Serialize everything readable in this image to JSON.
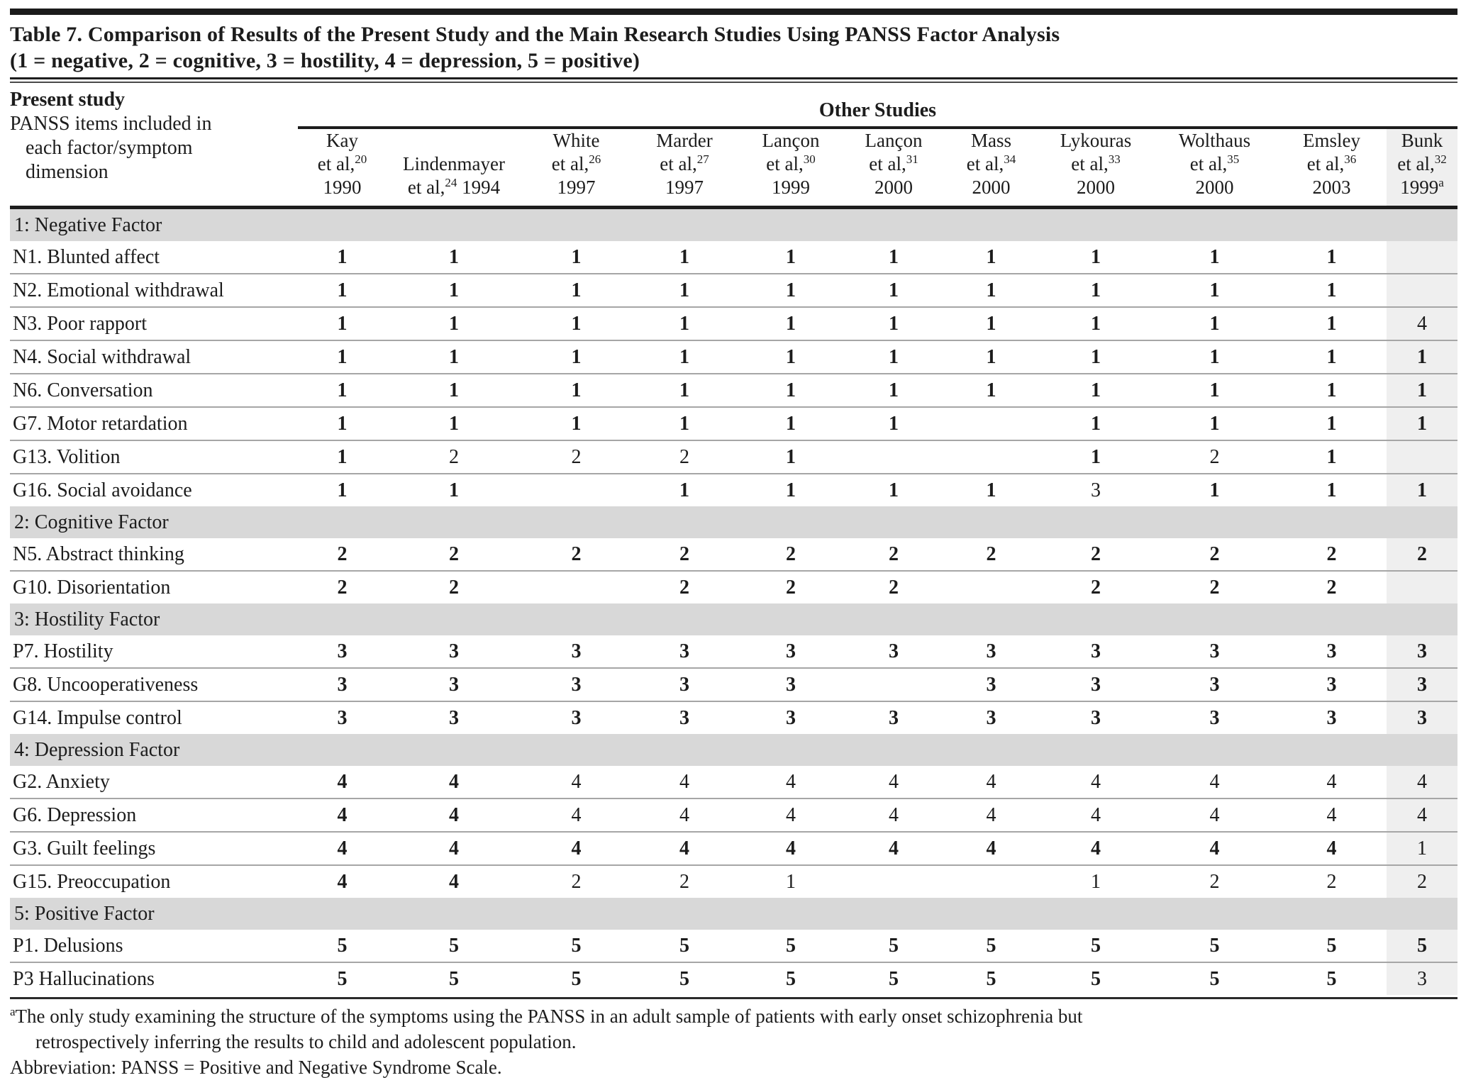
{
  "title": {
    "line1": "Table 7. Comparison of Results of the Present Study and the Main Research Studies Using PANSS Factor Analysis",
    "line2": "(1 = negative, 2 = cognitive, 3 = hostility, 4 = depression, 5 = positive)"
  },
  "header": {
    "present_study": "Present study",
    "stub_lines": [
      "PANSS items included in",
      "each factor/symptom",
      "dimension"
    ],
    "other_studies": "Other Studies",
    "etal_label": "et al,",
    "columns": [
      {
        "key": "kay-1990",
        "name": "Kay",
        "ref": "20",
        "year": "1990"
      },
      {
        "key": "lindenmayer-1994",
        "name": "Lindenmayer",
        "ref": "24",
        "year": "1994",
        "inline_year": true
      },
      {
        "key": "white-1997",
        "name": "White",
        "ref": "26",
        "year": "1997"
      },
      {
        "key": "marder-1997",
        "name": "Marder",
        "ref": "27",
        "year": "1997"
      },
      {
        "key": "lancon-1999",
        "name": "Lançon",
        "ref": "30",
        "year": "1999"
      },
      {
        "key": "lancon-2000",
        "name": "Lançon",
        "ref": "31",
        "year": "2000"
      },
      {
        "key": "mass-2000",
        "name": "Mass",
        "ref": "34",
        "year": "2000"
      },
      {
        "key": "lykouras-2000",
        "name": "Lykouras",
        "ref": "33",
        "year": "2000"
      },
      {
        "key": "wolthaus-2000",
        "name": "Wolthaus",
        "ref": "35",
        "year": "2000"
      },
      {
        "key": "emsley-2003",
        "name": "Emsley",
        "ref": "36",
        "year": "2003"
      },
      {
        "key": "bunk-1999",
        "name": "Bunk",
        "ref": "32",
        "year": "1999",
        "year_sup": "a",
        "shaded": true
      }
    ]
  },
  "sections": [
    {
      "label": "1: Negative Factor",
      "rows": [
        {
          "label": "N1. Blunted affect",
          "cells": [
            {
              "v": "1",
              "b": true
            },
            {
              "v": "1",
              "b": true
            },
            {
              "v": "1",
              "b": true
            },
            {
              "v": "1",
              "b": true
            },
            {
              "v": "1",
              "b": true
            },
            {
              "v": "1",
              "b": true
            },
            {
              "v": "1",
              "b": true
            },
            {
              "v": "1",
              "b": true
            },
            {
              "v": "1",
              "b": true
            },
            {
              "v": "1",
              "b": true
            },
            null
          ]
        },
        {
          "label": "N2. Emotional withdrawal",
          "cells": [
            {
              "v": "1",
              "b": true
            },
            {
              "v": "1",
              "b": true
            },
            {
              "v": "1",
              "b": true
            },
            {
              "v": "1",
              "b": true
            },
            {
              "v": "1",
              "b": true
            },
            {
              "v": "1",
              "b": true
            },
            {
              "v": "1",
              "b": true
            },
            {
              "v": "1",
              "b": true
            },
            {
              "v": "1",
              "b": true
            },
            {
              "v": "1",
              "b": true
            },
            null
          ]
        },
        {
          "label": "N3. Poor rapport",
          "cells": [
            {
              "v": "1",
              "b": true
            },
            {
              "v": "1",
              "b": true
            },
            {
              "v": "1",
              "b": true
            },
            {
              "v": "1",
              "b": true
            },
            {
              "v": "1",
              "b": true
            },
            {
              "v": "1",
              "b": true
            },
            {
              "v": "1",
              "b": true
            },
            {
              "v": "1",
              "b": true
            },
            {
              "v": "1",
              "b": true
            },
            {
              "v": "1",
              "b": true
            },
            {
              "v": "4",
              "b": false
            }
          ]
        },
        {
          "label": "N4. Social withdrawal",
          "cells": [
            {
              "v": "1",
              "b": true
            },
            {
              "v": "1",
              "b": true
            },
            {
              "v": "1",
              "b": true
            },
            {
              "v": "1",
              "b": true
            },
            {
              "v": "1",
              "b": true
            },
            {
              "v": "1",
              "b": true
            },
            {
              "v": "1",
              "b": true
            },
            {
              "v": "1",
              "b": true
            },
            {
              "v": "1",
              "b": true
            },
            {
              "v": "1",
              "b": true
            },
            {
              "v": "1",
              "b": true
            }
          ]
        },
        {
          "label": "N6. Conversation",
          "cells": [
            {
              "v": "1",
              "b": true
            },
            {
              "v": "1",
              "b": true
            },
            {
              "v": "1",
              "b": true
            },
            {
              "v": "1",
              "b": true
            },
            {
              "v": "1",
              "b": true
            },
            {
              "v": "1",
              "b": true
            },
            {
              "v": "1",
              "b": true
            },
            {
              "v": "1",
              "b": true
            },
            {
              "v": "1",
              "b": true
            },
            {
              "v": "1",
              "b": true
            },
            {
              "v": "1",
              "b": true
            }
          ]
        },
        {
          "label": "G7. Motor retardation",
          "cells": [
            {
              "v": "1",
              "b": true
            },
            {
              "v": "1",
              "b": true
            },
            {
              "v": "1",
              "b": true
            },
            {
              "v": "1",
              "b": true
            },
            {
              "v": "1",
              "b": true
            },
            {
              "v": "1",
              "b": true
            },
            null,
            {
              "v": "1",
              "b": true
            },
            {
              "v": "1",
              "b": true
            },
            {
              "v": "1",
              "b": true
            },
            {
              "v": "1",
              "b": true
            }
          ]
        },
        {
          "label": "G13. Volition",
          "cells": [
            {
              "v": "1",
              "b": true
            },
            {
              "v": "2",
              "b": false
            },
            {
              "v": "2",
              "b": false
            },
            {
              "v": "2",
              "b": false
            },
            {
              "v": "1",
              "b": true
            },
            null,
            null,
            {
              "v": "1",
              "b": true
            },
            {
              "v": "2",
              "b": false
            },
            {
              "v": "1",
              "b": true
            },
            null
          ]
        },
        {
          "label": "G16. Social avoidance",
          "cells": [
            {
              "v": "1",
              "b": true
            },
            {
              "v": "1",
              "b": true
            },
            null,
            {
              "v": "1",
              "b": true
            },
            {
              "v": "1",
              "b": true
            },
            {
              "v": "1",
              "b": true
            },
            {
              "v": "1",
              "b": true
            },
            {
              "v": "3",
              "b": false
            },
            {
              "v": "1",
              "b": true
            },
            {
              "v": "1",
              "b": true
            },
            {
              "v": "1",
              "b": true
            }
          ]
        }
      ]
    },
    {
      "label": "2: Cognitive Factor",
      "rows": [
        {
          "label": "N5. Abstract thinking",
          "cells": [
            {
              "v": "2",
              "b": true
            },
            {
              "v": "2",
              "b": true
            },
            {
              "v": "2",
              "b": true
            },
            {
              "v": "2",
              "b": true
            },
            {
              "v": "2",
              "b": true
            },
            {
              "v": "2",
              "b": true
            },
            {
              "v": "2",
              "b": true
            },
            {
              "v": "2",
              "b": true
            },
            {
              "v": "2",
              "b": true
            },
            {
              "v": "2",
              "b": true
            },
            {
              "v": "2",
              "b": true
            }
          ]
        },
        {
          "label": "G10. Disorientation",
          "cells": [
            {
              "v": "2",
              "b": true
            },
            {
              "v": "2",
              "b": true
            },
            null,
            {
              "v": "2",
              "b": true
            },
            {
              "v": "2",
              "b": true
            },
            {
              "v": "2",
              "b": true
            },
            null,
            {
              "v": "2",
              "b": true
            },
            {
              "v": "2",
              "b": true
            },
            {
              "v": "2",
              "b": true
            },
            null
          ]
        }
      ]
    },
    {
      "label": "3: Hostility Factor",
      "rows": [
        {
          "label": "P7. Hostility",
          "cells": [
            {
              "v": "3",
              "b": true
            },
            {
              "v": "3",
              "b": true
            },
            {
              "v": "3",
              "b": true
            },
            {
              "v": "3",
              "b": true
            },
            {
              "v": "3",
              "b": true
            },
            {
              "v": "3",
              "b": true
            },
            {
              "v": "3",
              "b": true
            },
            {
              "v": "3",
              "b": true
            },
            {
              "v": "3",
              "b": true
            },
            {
              "v": "3",
              "b": true
            },
            {
              "v": "3",
              "b": true
            }
          ]
        },
        {
          "label": "G8. Uncooperativeness",
          "cells": [
            {
              "v": "3",
              "b": true
            },
            {
              "v": "3",
              "b": true
            },
            {
              "v": "3",
              "b": true
            },
            {
              "v": "3",
              "b": true
            },
            {
              "v": "3",
              "b": true
            },
            null,
            {
              "v": "3",
              "b": true
            },
            {
              "v": "3",
              "b": true
            },
            {
              "v": "3",
              "b": true
            },
            {
              "v": "3",
              "b": true
            },
            {
              "v": "3",
              "b": true
            }
          ]
        },
        {
          "label": "G14. Impulse control",
          "cells": [
            {
              "v": "3",
              "b": true
            },
            {
              "v": "3",
              "b": true
            },
            {
              "v": "3",
              "b": true
            },
            {
              "v": "3",
              "b": true
            },
            {
              "v": "3",
              "b": true
            },
            {
              "v": "3",
              "b": true
            },
            {
              "v": "3",
              "b": true
            },
            {
              "v": "3",
              "b": true
            },
            {
              "v": "3",
              "b": true
            },
            {
              "v": "3",
              "b": true
            },
            {
              "v": "3",
              "b": true
            }
          ]
        }
      ]
    },
    {
      "label": "4: Depression Factor",
      "rows": [
        {
          "label": "G2. Anxiety",
          "cells": [
            {
              "v": "4",
              "b": true
            },
            {
              "v": "4",
              "b": true
            },
            {
              "v": "4",
              "b": false
            },
            {
              "v": "4",
              "b": false
            },
            {
              "v": "4",
              "b": false
            },
            {
              "v": "4",
              "b": false
            },
            {
              "v": "4",
              "b": false
            },
            {
              "v": "4",
              "b": false
            },
            {
              "v": "4",
              "b": false
            },
            {
              "v": "4",
              "b": false
            },
            {
              "v": "4",
              "b": false
            }
          ]
        },
        {
          "label": "G6. Depression",
          "cells": [
            {
              "v": "4",
              "b": true
            },
            {
              "v": "4",
              "b": true
            },
            {
              "v": "4",
              "b": false
            },
            {
              "v": "4",
              "b": false
            },
            {
              "v": "4",
              "b": false
            },
            {
              "v": "4",
              "b": false
            },
            {
              "v": "4",
              "b": false
            },
            {
              "v": "4",
              "b": false
            },
            {
              "v": "4",
              "b": false
            },
            {
              "v": "4",
              "b": false
            },
            {
              "v": "4",
              "b": false
            }
          ]
        },
        {
          "label": "G3. Guilt feelings",
          "cells": [
            {
              "v": "4",
              "b": true
            },
            {
              "v": "4",
              "b": true
            },
            {
              "v": "4",
              "b": true
            },
            {
              "v": "4",
              "b": true
            },
            {
              "v": "4",
              "b": true
            },
            {
              "v": "4",
              "b": true
            },
            {
              "v": "4",
              "b": true
            },
            {
              "v": "4",
              "b": true
            },
            {
              "v": "4",
              "b": true
            },
            {
              "v": "4",
              "b": true
            },
            {
              "v": "1",
              "b": false
            }
          ]
        },
        {
          "label": "G15. Preoccupation",
          "cells": [
            {
              "v": "4",
              "b": true
            },
            {
              "v": "4",
              "b": true
            },
            {
              "v": "2",
              "b": false
            },
            {
              "v": "2",
              "b": false
            },
            {
              "v": "1",
              "b": false
            },
            null,
            null,
            {
              "v": "1",
              "b": false
            },
            {
              "v": "2",
              "b": false
            },
            {
              "v": "2",
              "b": false
            },
            {
              "v": "2",
              "b": false
            }
          ]
        }
      ]
    },
    {
      "label": "5: Positive Factor",
      "rows": [
        {
          "label": "P1. Delusions",
          "cells": [
            {
              "v": "5",
              "b": true
            },
            {
              "v": "5",
              "b": true
            },
            {
              "v": "5",
              "b": true
            },
            {
              "v": "5",
              "b": true
            },
            {
              "v": "5",
              "b": true
            },
            {
              "v": "5",
              "b": true
            },
            {
              "v": "5",
              "b": true
            },
            {
              "v": "5",
              "b": true
            },
            {
              "v": "5",
              "b": true
            },
            {
              "v": "5",
              "b": true
            },
            {
              "v": "5",
              "b": true
            }
          ]
        },
        {
          "label": "P3 Hallucinations",
          "cells": [
            {
              "v": "5",
              "b": true
            },
            {
              "v": "5",
              "b": true
            },
            {
              "v": "5",
              "b": true
            },
            {
              "v": "5",
              "b": true
            },
            {
              "v": "5",
              "b": true
            },
            {
              "v": "5",
              "b": true
            },
            {
              "v": "5",
              "b": true
            },
            {
              "v": "5",
              "b": true
            },
            {
              "v": "5",
              "b": true
            },
            {
              "v": "5",
              "b": true
            },
            {
              "v": "3",
              "b": false
            }
          ]
        }
      ]
    }
  ],
  "footnotes": {
    "sup": "a",
    "line1": "The only study examining the structure of the symptoms using the PANSS in an adult sample of patients with early onset schizophrenia but",
    "line2": "retrospectively inferring the results to child and adolescent population.",
    "abbrev": "Abbreviation: PANSS = Positive and Negative Syndrome Scale."
  },
  "colors": {
    "rule": "#1d1d1d",
    "section_row_bg": "#d8d8d8",
    "bunk_column_bg": "#efefef",
    "row_separator": "#a6a6a6",
    "text": "#1c1c1c"
  }
}
